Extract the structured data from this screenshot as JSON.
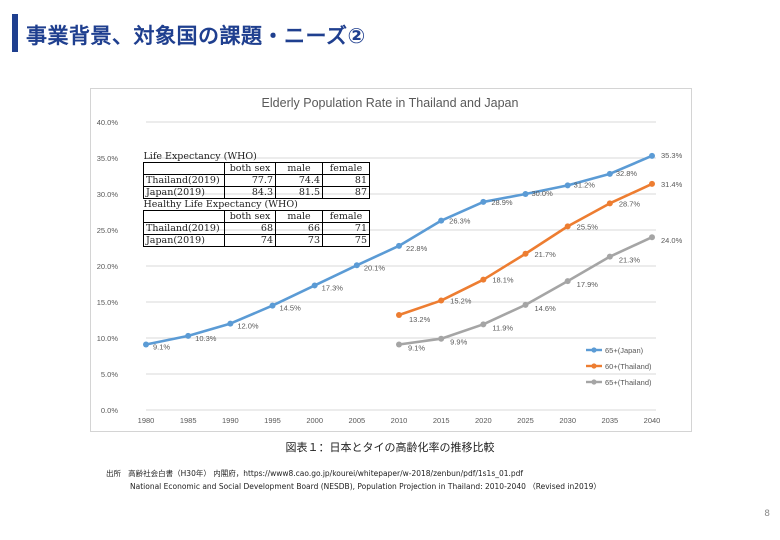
{
  "slide": {
    "title": "事業背景、対象国の課題・ニーズ②",
    "caption": "図表１：日本とタイの高齢化率の推移比較",
    "source_label": "出所",
    "source_line1": "高齢社会白書（H30年） 内閣府，https://www8.cao.go.jp/kourei/whitepaper/w-2018/zenbun/pdf/1s1s_01.pdf",
    "source_line2": "National Economic and Social Development Board (NESDB), Population Projection in Thailand: 2010-2040 （Revised in2019）",
    "page_number": "8"
  },
  "life_expectancy_table": {
    "title": "Life Expectancy (WHO)",
    "headers": [
      "both sex",
      "male",
      "female"
    ],
    "rows": [
      {
        "label": "Thailand(2019)",
        "values": [
          "77.7",
          "74.4",
          "81"
        ]
      },
      {
        "label": "Japan(2019)",
        "values": [
          "84.3",
          "81.5",
          "87"
        ]
      }
    ]
  },
  "healthy_life_table": {
    "title": "Healthy Life Expectancy (WHO)",
    "headers": [
      "both sex",
      "male",
      "female"
    ],
    "rows": [
      {
        "label": "Thailand(2019)",
        "values": [
          "68",
          "66",
          "71"
        ]
      },
      {
        "label": "Japan(2019)",
        "values": [
          "74",
          "73",
          "75"
        ]
      }
    ]
  },
  "chart_data": {
    "type": "line",
    "title": "Elderly Population Rate in Thailand and Japan",
    "xlabel": "",
    "ylabel": "",
    "categories": [
      "1980",
      "1985",
      "1990",
      "1995",
      "2000",
      "2005",
      "2010",
      "2015",
      "2020",
      "2025",
      "2030",
      "2035",
      "2040"
    ],
    "ylim": [
      0,
      40
    ],
    "yticks": [
      "0.0%",
      "5.0%",
      "10.0%",
      "15.0%",
      "20.0%",
      "25.0%",
      "30.0%",
      "35.0%",
      "40.0%"
    ],
    "grid": true,
    "legend_position": "bottom-right",
    "series": [
      {
        "name": "65+(Japan)",
        "color": "#5b9bd5",
        "values": [
          9.1,
          10.3,
          12.0,
          14.5,
          17.3,
          20.1,
          22.8,
          26.3,
          28.9,
          30.0,
          31.2,
          32.8,
          35.3
        ],
        "labels": [
          "9.1%",
          "10.3%",
          "12.0%",
          "14.5%",
          "17.3%",
          "20.1%",
          "22.8%",
          "26.3%",
          "28.9%",
          "30.0%",
          "31.2%",
          "32.8%",
          "35.3%"
        ]
      },
      {
        "name": "60+(Thailand)",
        "color": "#ed7d31",
        "values": [
          null,
          null,
          null,
          null,
          null,
          null,
          13.2,
          15.2,
          18.1,
          21.7,
          25.5,
          28.7,
          31.4
        ],
        "labels": [
          "",
          "",
          "",
          "",
          "",
          "",
          "13.2%",
          "15.2%",
          "18.1%",
          "21.7%",
          "25.5%",
          "28.7%",
          "31.4%"
        ]
      },
      {
        "name": "65+(Thailand)",
        "color": "#a5a5a5",
        "values": [
          null,
          null,
          null,
          null,
          null,
          null,
          9.1,
          9.9,
          11.9,
          14.6,
          17.9,
          21.3,
          24.0
        ],
        "labels": [
          "",
          "",
          "",
          "",
          "",
          "",
          "9.1%",
          "9.9%",
          "11.9%",
          "14.6%",
          "17.9%",
          "21.3%",
          "24.0%"
        ]
      }
    ]
  }
}
